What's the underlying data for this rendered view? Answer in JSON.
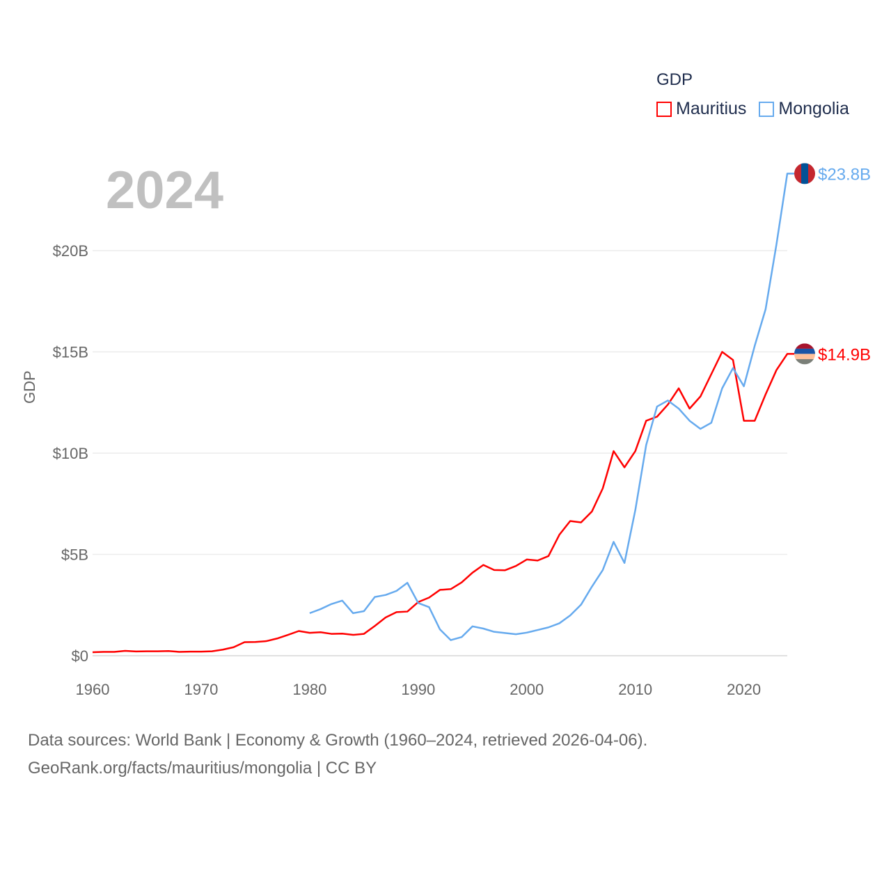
{
  "chart_data": {
    "type": "line",
    "title": "",
    "year_label": "2024",
    "ylabel": "GDP",
    "xlabel": "",
    "xlim": [
      1960,
      2024
    ],
    "ylim": [
      0,
      25
    ],
    "x_ticks": [
      "1960",
      "1970",
      "1980",
      "1990",
      "2000",
      "2010",
      "2020"
    ],
    "x_tick_values": [
      1960,
      1970,
      1980,
      1990,
      2000,
      2010,
      2020
    ],
    "y_ticks": [
      "$0",
      "$5B",
      "$10B",
      "$15B",
      "$20B"
    ],
    "y_tick_values": [
      0,
      5,
      10,
      15,
      20
    ],
    "grid": true,
    "legend": {
      "title": "GDP",
      "placement": "top-right"
    },
    "series": [
      {
        "name": "Mauritius",
        "color": "#ff0000",
        "end_label": "$14.9B",
        "flag": "mauritius-flag",
        "x_start": 1960,
        "values": [
          0.17,
          0.19,
          0.19,
          0.24,
          0.21,
          0.22,
          0.22,
          0.23,
          0.19,
          0.2,
          0.2,
          0.22,
          0.3,
          0.42,
          0.67,
          0.68,
          0.72,
          0.85,
          1.03,
          1.22,
          1.13,
          1.16,
          1.08,
          1.09,
          1.03,
          1.08,
          1.47,
          1.89,
          2.15,
          2.18,
          2.65,
          2.87,
          3.25,
          3.29,
          3.62,
          4.1,
          4.48,
          4.23,
          4.22,
          4.43,
          4.75,
          4.7,
          4.92,
          5.97,
          6.65,
          6.58,
          7.12,
          8.26,
          10.1,
          9.3,
          10.1,
          11.6,
          11.8,
          12.4,
          13.2,
          12.2,
          12.8,
          13.9,
          15.0,
          14.6,
          11.6,
          11.6,
          12.9,
          14.1,
          14.9
        ]
      },
      {
        "name": "Mongolia",
        "color": "#66aaee",
        "end_label": "$23.8B",
        "flag": "mongolia-flag",
        "x_start": 1980,
        "values": [
          2.1,
          2.3,
          2.55,
          2.72,
          2.1,
          2.2,
          2.9,
          3.0,
          3.2,
          3.6,
          2.6,
          2.4,
          1.3,
          0.77,
          0.92,
          1.45,
          1.34,
          1.18,
          1.12,
          1.06,
          1.14,
          1.27,
          1.4,
          1.6,
          1.99,
          2.52,
          3.41,
          4.23,
          5.62,
          4.58,
          7.19,
          10.4,
          12.3,
          12.6,
          12.2,
          11.6,
          11.2,
          11.5,
          13.2,
          14.2,
          13.3,
          15.3,
          17.1,
          20.3,
          23.8
        ]
      }
    ]
  },
  "footer": {
    "line1": "Data sources: World Bank | Economy & Growth (1960–2024, retrieved 2026-04-06).",
    "line2": "GeoRank.org/facts/mauritius/mongolia | CC BY"
  }
}
